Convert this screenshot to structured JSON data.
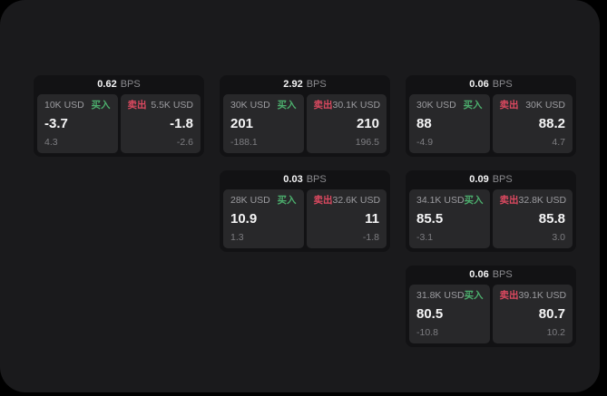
{
  "labels": {
    "bps_unit": "BPS",
    "buy": "买入",
    "sell": "卖出"
  },
  "colors": {
    "buy_green": "#4cae6d",
    "sell_red": "#dc4960",
    "panel_bg": "#1a1a1c",
    "card_bg": "#121214",
    "tile_bg": "#28282a",
    "page_bg": "#000000"
  },
  "cards": [
    {
      "bps": "0.62",
      "buy": {
        "size": "10K USD",
        "value": "-3.7",
        "sub": "4.3"
      },
      "sell": {
        "size": "5.5K USD",
        "value": "-1.8",
        "sub": "-2.6"
      }
    },
    {
      "bps": "2.92",
      "buy": {
        "size": "30K USD",
        "value": "201",
        "sub": "-188.1"
      },
      "sell": {
        "size": "30.1K USD",
        "value": "210",
        "sub": "196.5"
      }
    },
    {
      "bps": "0.06",
      "buy": {
        "size": "30K USD",
        "value": "88",
        "sub": "-4.9"
      },
      "sell": {
        "size": "30K USD",
        "value": "88.2",
        "sub": "4.7"
      }
    },
    {
      "bps": "0.03",
      "buy": {
        "size": "28K USD",
        "value": "10.9",
        "sub": "1.3"
      },
      "sell": {
        "size": "32.6K USD",
        "value": "11",
        "sub": "-1.8"
      }
    },
    {
      "bps": "0.09",
      "buy": {
        "size": "34.1K USD",
        "value": "85.5",
        "sub": "-3.1"
      },
      "sell": {
        "size": "32.8K USD",
        "value": "85.8",
        "sub": "3.0"
      }
    },
    {
      "bps": "0.06",
      "buy": {
        "size": "31.8K USD",
        "value": "80.5",
        "sub": "-10.8"
      },
      "sell": {
        "size": "39.1K USD",
        "value": "80.7",
        "sub": "10.2"
      }
    }
  ]
}
